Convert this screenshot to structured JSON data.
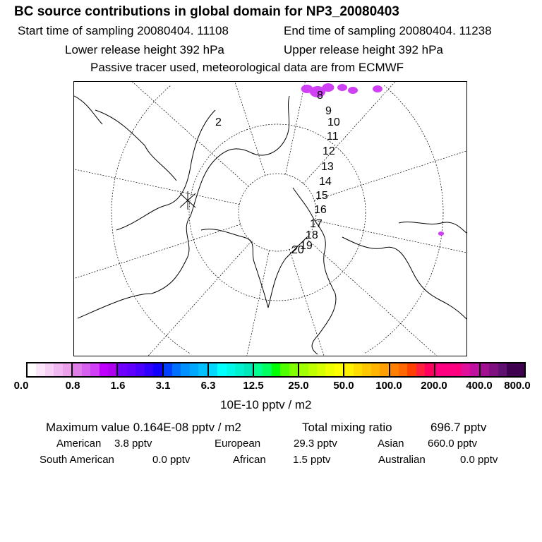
{
  "header": {
    "title": "BC  source contributions in global domain for NP3_20080403",
    "start_label": "Start time of sampling 20080404. 11108",
    "end_label": "End time of sampling 20080404. 11238",
    "lower_label": "Lower release height  392 hPa",
    "upper_label": "Upper release height  392 hPa",
    "tracer_label": "Passive tracer used, meteorological data are from ECMWF"
  },
  "chart_data": {
    "type": "heatmap",
    "title": "BC  source contributions in global domain for NP3_20080403",
    "projection": "north polar stereographic",
    "trajectory_labels": [
      "2",
      "8",
      "9",
      "10",
      "11",
      "12",
      "13",
      "14",
      "15",
      "16",
      "17",
      "18",
      "19",
      "20"
    ],
    "colorbar": {
      "ticks": [
        "0.0",
        "0.8",
        "1.6",
        "3.1",
        "6.3",
        "12.5",
        "25.0",
        "50.0",
        "100.0",
        "200.0",
        "400.0",
        "800.0"
      ],
      "unit_label": "10E-10 pptv / m2",
      "colors": [
        "#ffffff",
        "#fbe6fb",
        "#f6d0f6",
        "#f0b8f0",
        "#eaa0ea",
        "#e07ee8",
        "#d462ee",
        "#d040f4",
        "#c000ff",
        "#b000f0",
        "#7000ff",
        "#6000ff",
        "#4a00ff",
        "#3000ff",
        "#1000ff",
        "#0040ff",
        "#0070ff",
        "#0090ff",
        "#00a8ff",
        "#00c0ff",
        "#00d8ff",
        "#00ffff",
        "#00f8e8",
        "#00f0d0",
        "#00e8b8",
        "#00ff90",
        "#00ff60",
        "#00ff00",
        "#50ff00",
        "#80ff00",
        "#a0ff00",
        "#c0ff00",
        "#d8ff00",
        "#f0ff00",
        "#ffff00",
        "#fff000",
        "#ffdc00",
        "#ffc800",
        "#ffb400",
        "#ffa000",
        "#ff8000",
        "#ff6800",
        "#ff4000",
        "#ff2040",
        "#ff0060",
        "#ff0080",
        "#ff0080",
        "#ff0080",
        "#e0109c",
        "#c010a0",
        "#a01090",
        "#801080",
        "#601070",
        "#400050"
      ]
    }
  },
  "stats": {
    "max_label": "Maximum value  0.164E-08 pptv / m2",
    "total_label": "Total mixing ratio",
    "total_value": "696.7 pptv",
    "regions": [
      {
        "name": "American",
        "value": "3.8 pptv"
      },
      {
        "name": "European",
        "value": "29.3 pptv"
      },
      {
        "name": "Asian",
        "value": "660.0 pptv"
      },
      {
        "name": "South American",
        "value": "0.0 pptv"
      },
      {
        "name": "African",
        "value": "1.5 pptv"
      },
      {
        "name": "Australian",
        "value": "0.0 pptv"
      }
    ]
  }
}
